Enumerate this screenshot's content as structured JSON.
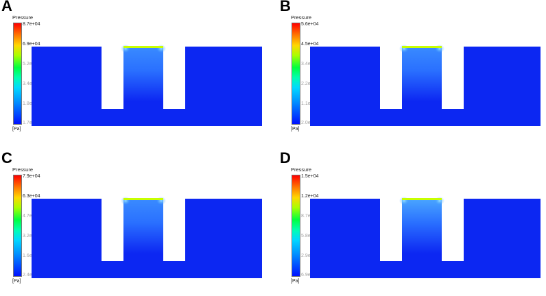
{
  "panels": [
    {
      "letter": "A",
      "legend_title": "Pressure",
      "unit": "[Pa]",
      "ticks": [
        "8.7e+04",
        "6.9e+04",
        "5.2e+04",
        "3.4e+04",
        "1.8e+04",
        "1.7e+03"
      ],
      "cavity_tint": "#3a8bff"
    },
    {
      "letter": "B",
      "legend_title": "Pressure",
      "unit": "[Pa]",
      "ticks": [
        "5.6e+04",
        "4.5e+04",
        "3.4e+04",
        "2.2e+04",
        "1.1e+04",
        "2.0e+02"
      ],
      "cavity_tint": "#3a8bff"
    },
    {
      "letter": "C",
      "legend_title": "Pressure",
      "unit": "[Pa]",
      "ticks": [
        "7.9e+04",
        "6.3e+04",
        "4.7e+04",
        "3.2e+04",
        "1.6e+04",
        "2.4e+03"
      ],
      "cavity_tint": "#3a8bff"
    },
    {
      "letter": "D",
      "legend_title": "Pressure",
      "unit": "[Pa]",
      "ticks": [
        "1.5e+04",
        "1.2e+04",
        "8.7e+03",
        "5.8e+03",
        "2.9e+03",
        "6.9e+02"
      ],
      "cavity_tint": "#4aa6ff"
    }
  ],
  "colors": {
    "domain_blue": "#0c27f2",
    "top_edge": "#c8ff00"
  }
}
